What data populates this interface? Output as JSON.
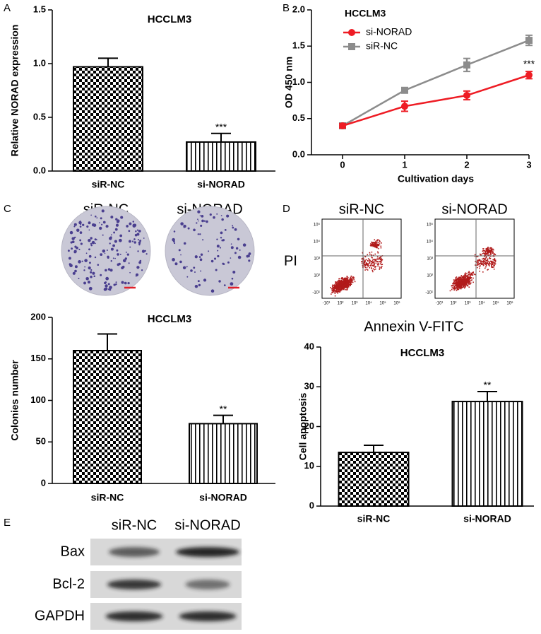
{
  "panels": [
    "A",
    "B",
    "C",
    "D",
    "E"
  ],
  "chart_data": [
    {
      "type": "bar",
      "title": "HCCLM3",
      "y_label": "Relative NORAD expression",
      "categories": [
        "siR-NC",
        "si-NORAD"
      ],
      "values": [
        0.97,
        0.27
      ],
      "errors": [
        0.08,
        0.08
      ],
      "value_annotations": [
        null,
        "***"
      ],
      "ylim": [
        0,
        1.5
      ],
      "yticks": [
        {
          "value": 0,
          "label": "0.0"
        },
        0.5,
        {
          "value": 1,
          "label": "1.0"
        },
        1.5
      ]
    },
    {
      "type": "line",
      "title": "HCCLM3",
      "x_label": "Cultivation days",
      "y_label": "OD 450 nm",
      "x": [
        0,
        1,
        2,
        3
      ],
      "xlim": [
        -0.5,
        3
      ],
      "xticks": [
        0,
        1,
        2,
        3
      ],
      "ylim": [
        0,
        2
      ],
      "yticks": [
        {
          "value": 0,
          "label": "0.0"
        },
        0.5,
        {
          "value": 1,
          "label": "1.0"
        },
        1.5,
        {
          "value": 2,
          "label": "2.0"
        }
      ],
      "legend": "upper left",
      "series": [
        {
          "name": "si-NORAD",
          "color": "#ee1c24",
          "marker": "circle",
          "values": [
            0.4,
            0.67,
            0.82,
            1.1
          ],
          "errors": [
            0.03,
            0.07,
            0.06,
            0.05
          ],
          "value_annotations": [
            null,
            null,
            null,
            "***"
          ]
        },
        {
          "name": "siR-NC",
          "color": "#8c8c8c",
          "marker": "square",
          "values": [
            0.4,
            0.89,
            1.24,
            1.58
          ],
          "errors": [
            0.03,
            0.03,
            0.09,
            0.07
          ]
        }
      ]
    },
    {
      "type": "bar",
      "title": "HCCLM3",
      "y_label": "Colonies number",
      "categories": [
        "siR-NC",
        "si-NORAD"
      ],
      "values": [
        160,
        72
      ],
      "errors": [
        20,
        10
      ],
      "value_annotations": [
        null,
        "**"
      ],
      "ylim": [
        0,
        200
      ],
      "yticks": [
        0,
        50,
        100,
        150,
        200
      ]
    },
    {
      "type": "bar",
      "title": "HCCLM3",
      "y_label": "Cell apoptosis",
      "categories": [
        "siR-NC",
        "si-NORAD"
      ],
      "values": [
        13.5,
        26.3
      ],
      "errors": [
        1.8,
        2.5
      ],
      "value_annotations": [
        null,
        "**"
      ],
      "ylim": [
        0,
        40
      ],
      "yticks": [
        0,
        10,
        20,
        30,
        40
      ]
    }
  ],
  "colony_assay": {
    "labels": [
      "siR-NC",
      "si-NORAD"
    ]
  },
  "flow_cytometry": {
    "labels": [
      "siR-NC",
      "si-NORAD"
    ],
    "y_label": "PI",
    "x_label": "Annexin V-FITC",
    "x_tick_labels": [
      "-10¹",
      "10²",
      "10³",
      "10⁴",
      "10⁵",
      "10⁶"
    ],
    "y_tick_labels": [
      "-10¹",
      "10²",
      "10³",
      "10⁴",
      "10⁵"
    ]
  },
  "western_blot": {
    "lanes": [
      "siR-NC",
      "si-NORAD"
    ],
    "proteins": [
      "Bax",
      "Bcl-2",
      "GAPDH"
    ]
  }
}
